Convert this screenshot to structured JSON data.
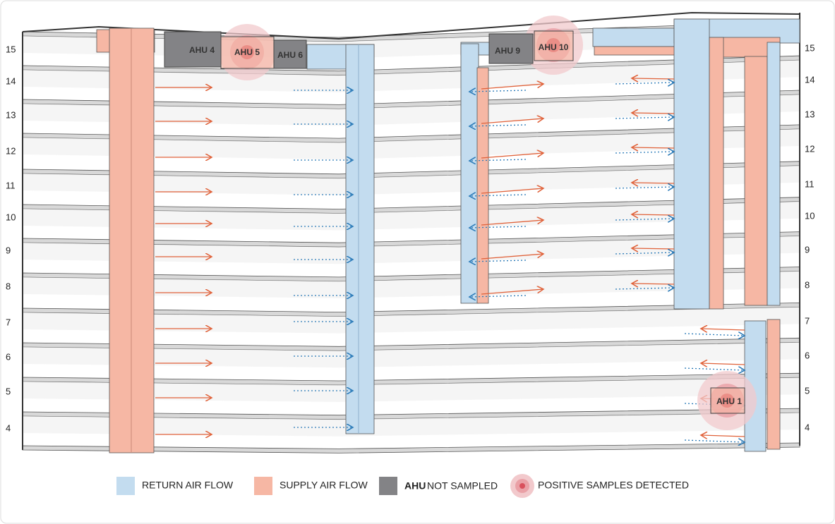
{
  "floors_left": [
    "15",
    "14",
    "13",
    "12",
    "11",
    "10",
    "9",
    "8",
    "7",
    "6",
    "5",
    "4"
  ],
  "floors_right": [
    "15",
    "14",
    "13",
    "12",
    "11",
    "10",
    "9",
    "8",
    "7",
    "6",
    "5",
    "4"
  ],
  "units": [
    {
      "label": "AHU 4"
    },
    {
      "label": "AHU 5"
    },
    {
      "label": "AHU 6"
    },
    {
      "label": "AHU 9"
    },
    {
      "label": "AHU 10"
    },
    {
      "label": "AHU 1"
    }
  ],
  "legend": {
    "return": "RETURN AIR FLOW",
    "supply": "SUPPLY AIR FLOW",
    "ahu": "AHU",
    "not_sampled": "NOT SAMPLED",
    "positive": "POSITIVE SAMPLES DETECTED"
  }
}
